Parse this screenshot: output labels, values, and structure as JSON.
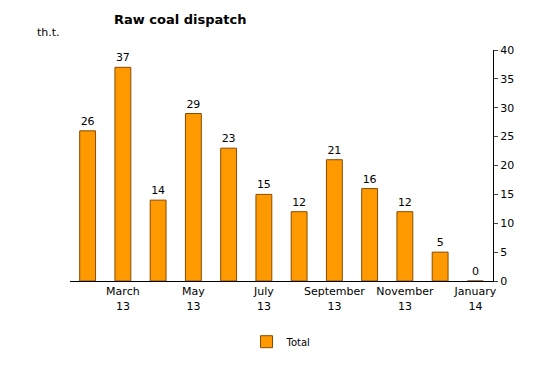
{
  "chart_data": {
    "type": "bar",
    "title": "Raw coal dispatch",
    "ylabel": "th.t.",
    "categories": [
      null,
      "March 13",
      null,
      "May 13",
      null,
      "July 13",
      null,
      "September 13",
      null,
      "November 13",
      null,
      "January 14"
    ],
    "series": [
      {
        "name": "Total",
        "color": "#FF9900",
        "values": [
          26,
          37,
          14,
          29,
          23,
          15,
          12,
          21,
          16,
          12,
          5,
          0
        ]
      }
    ],
    "ylim": [
      0,
      40
    ],
    "yticks": [
      0,
      5,
      10,
      15,
      20,
      25,
      30,
      35,
      40
    ],
    "grid": false,
    "legend": "bottom",
    "data_labels": true
  }
}
